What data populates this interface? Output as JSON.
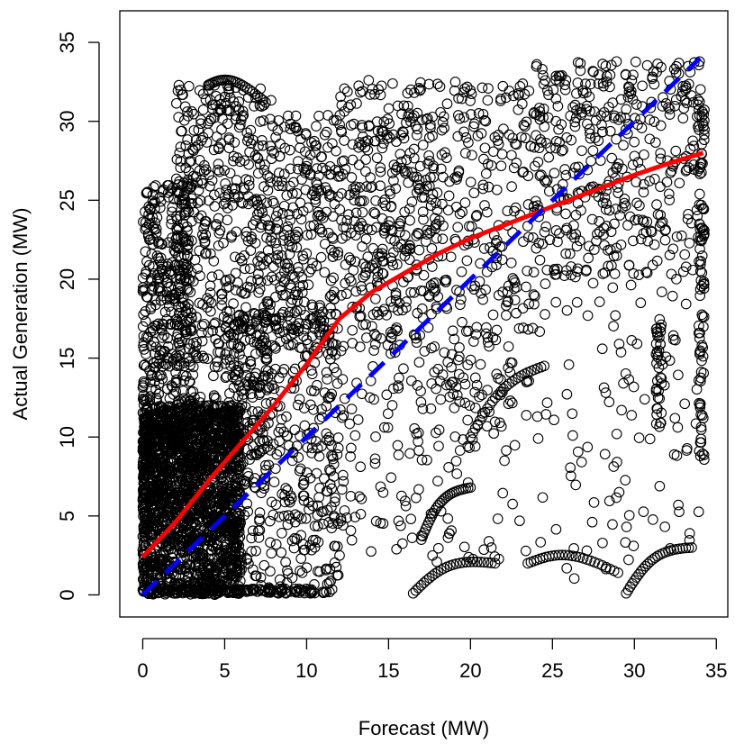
{
  "chart_data": {
    "type": "scatter",
    "title": "",
    "xlabel": "Forecast (MW)",
    "ylabel": "Actual Generation (MW)",
    "xlim": [
      -1.4,
      35.7
    ],
    "ylim": [
      -1.4,
      37.0
    ],
    "xticks": [
      0,
      5,
      10,
      15,
      20,
      25,
      30,
      35
    ],
    "yticks": [
      0,
      5,
      10,
      15,
      20,
      25,
      30,
      35
    ],
    "xtick_labels": [
      "0",
      "5",
      "10",
      "15",
      "20",
      "25",
      "30",
      "35"
    ],
    "ytick_labels": [
      "0",
      "5",
      "10",
      "15",
      "20",
      "25",
      "30",
      "35"
    ],
    "grid": false,
    "point_marker": "open-circle",
    "point_color": "#000000",
    "point_count_approx": 4500,
    "series": [
      {
        "kind": "points",
        "regions": [
          {
            "xmin": 0.0,
            "xmax": 6.0,
            "ymin": 0.0,
            "ymax": 12.0,
            "n": 1700
          },
          {
            "xmin": 0.0,
            "xmax": 3.0,
            "ymin": 5.0,
            "ymax": 26.0,
            "n": 450
          },
          {
            "xmin": 2.0,
            "xmax": 8.0,
            "ymin": 8.0,
            "ymax": 32.3,
            "n": 550
          },
          {
            "xmin": 5.0,
            "xmax": 12.0,
            "ymin": 0.0,
            "ymax": 18.0,
            "n": 450
          },
          {
            "xmin": 8.0,
            "xmax": 12.0,
            "ymin": 15.0,
            "ymax": 30.5,
            "n": 250
          },
          {
            "xmin": 12.0,
            "xmax": 18.0,
            "ymin": 15.0,
            "ymax": 32.6,
            "n": 380
          },
          {
            "xmin": 18.0,
            "xmax": 24.0,
            "ymin": 12.0,
            "ymax": 32.5,
            "n": 250
          },
          {
            "xmin": 24.0,
            "xmax": 34.2,
            "ymin": 20.0,
            "ymax": 33.8,
            "n": 420
          },
          {
            "xmin": 12.0,
            "xmax": 22.0,
            "ymin": 2.0,
            "ymax": 15.0,
            "n": 150
          },
          {
            "xmin": 22.0,
            "xmax": 34.2,
            "ymin": 1.0,
            "ymax": 20.0,
            "n": 120
          }
        ],
        "vertical_clusters": [
          {
            "x": 34.1,
            "ymin": 8.5,
            "ymax": 33.0,
            "n": 80
          },
          {
            "x": 31.5,
            "ymin": 10.0,
            "ymax": 18.0,
            "n": 40
          },
          {
            "x": 0.1,
            "ymin": 0.0,
            "ymax": 13.5,
            "n": 150
          }
        ],
        "zero_row": {
          "xmin": 0.0,
          "xmax": 11.5,
          "y": 0.1,
          "n": 150
        },
        "arcs": [
          {
            "x0": 0.8,
            "y0": 13.0,
            "x1": 4.0,
            "y1": 32.0
          },
          {
            "x0": 4.0,
            "y0": 32.3,
            "x1": 7.5,
            "y1": 31.2
          },
          {
            "x0": 16.5,
            "y0": 0.1,
            "x1": 21.5,
            "y1": 2.0
          },
          {
            "x0": 23.5,
            "y0": 2.0,
            "x1": 29.0,
            "y1": 1.4
          },
          {
            "x0": 29.5,
            "y0": 0.1,
            "x1": 33.5,
            "y1": 3.0
          },
          {
            "x0": 17.0,
            "y0": 3.5,
            "x1": 20.0,
            "y1": 6.8
          },
          {
            "x0": 20.0,
            "y0": 10.0,
            "x1": 24.5,
            "y1": 14.5
          }
        ]
      },
      {
        "kind": "line",
        "style": "solid",
        "color": "#ff0000",
        "x": [
          0,
          2,
          4,
          6,
          8,
          10,
          12,
          14,
          16,
          18,
          20,
          22,
          24,
          26,
          28,
          30,
          32,
          34.2
        ],
        "y": [
          2.4,
          4.6,
          7.2,
          9.6,
          12.0,
          14.6,
          17.5,
          19.2,
          20.4,
          21.6,
          22.6,
          23.4,
          24.2,
          25.0,
          25.8,
          26.6,
          27.3,
          28.0
        ]
      },
      {
        "kind": "line",
        "style": "dashed",
        "color": "#0000ff",
        "x": [
          0,
          34
        ],
        "y": [
          0,
          34
        ]
      }
    ]
  }
}
